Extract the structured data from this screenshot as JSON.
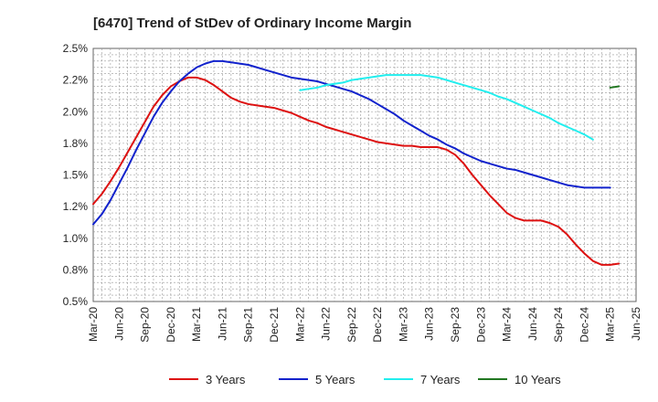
{
  "chart_data": {
    "type": "line",
    "title": "[6470]  Trend of StDev of Ordinary Income Margin",
    "xlabel": "",
    "ylabel": "",
    "ylim": [
      0.5,
      2.5
    ],
    "y_ticks": [
      0.5,
      0.75,
      1.0,
      1.25,
      1.5,
      1.75,
      2.0,
      2.25,
      2.5
    ],
    "y_tick_labels": [
      "0.5%",
      "0.8%",
      "1.0%",
      "1.2%",
      "1.5%",
      "1.8%",
      "2.0%",
      "2.2%",
      "2.5%"
    ],
    "x_tick_labels": [
      "Mar-20",
      "Jun-20",
      "Sep-20",
      "Dec-20",
      "Mar-21",
      "Jun-21",
      "Sep-21",
      "Dec-21",
      "Mar-22",
      "Jun-22",
      "Sep-22",
      "Dec-22",
      "Mar-23",
      "Jun-23",
      "Sep-23",
      "Dec-23",
      "Mar-24",
      "Jun-24",
      "Sep-24",
      "Dec-24",
      "Mar-25",
      "Jun-25"
    ],
    "grid": true,
    "legend_position": "bottom",
    "series": [
      {
        "name": "3 Years",
        "color": "#dd1111",
        "start_month": 0,
        "values": [
          1.27,
          1.35,
          1.45,
          1.56,
          1.68,
          1.8,
          1.92,
          2.04,
          2.13,
          2.2,
          2.24,
          2.27,
          2.27,
          2.25,
          2.21,
          2.16,
          2.11,
          2.08,
          2.06,
          2.05,
          2.04,
          2.03,
          2.01,
          1.99,
          1.96,
          1.93,
          1.91,
          1.88,
          1.86,
          1.84,
          1.82,
          1.8,
          1.78,
          1.76,
          1.75,
          1.74,
          1.73,
          1.73,
          1.72,
          1.72,
          1.72,
          1.7,
          1.66,
          1.59,
          1.5,
          1.42,
          1.34,
          1.27,
          1.2,
          1.16,
          1.14,
          1.14,
          1.14,
          1.12,
          1.09,
          1.03,
          0.95,
          0.88,
          0.82,
          0.79,
          0.79,
          0.8
        ]
      },
      {
        "name": "5 Years",
        "color": "#1122cc",
        "start_month": 0,
        "values": [
          1.11,
          1.19,
          1.3,
          1.43,
          1.56,
          1.7,
          1.83,
          1.96,
          2.07,
          2.16,
          2.24,
          2.3,
          2.35,
          2.38,
          2.4,
          2.4,
          2.39,
          2.38,
          2.37,
          2.35,
          2.33,
          2.31,
          2.29,
          2.27,
          2.26,
          2.25,
          2.24,
          2.22,
          2.2,
          2.18,
          2.16,
          2.13,
          2.1,
          2.06,
          2.02,
          1.98,
          1.93,
          1.89,
          1.85,
          1.81,
          1.78,
          1.74,
          1.71,
          1.67,
          1.64,
          1.61,
          1.59,
          1.57,
          1.55,
          1.54,
          1.52,
          1.5,
          1.48,
          1.46,
          1.44,
          1.42,
          1.41,
          1.4,
          1.4,
          1.4,
          1.4
        ]
      },
      {
        "name": "7 Years",
        "color": "#22eeee",
        "start_month": 24,
        "values": [
          2.17,
          2.18,
          2.19,
          2.21,
          2.22,
          2.23,
          2.25,
          2.26,
          2.27,
          2.28,
          2.29,
          2.29,
          2.29,
          2.29,
          2.29,
          2.28,
          2.27,
          2.25,
          2.23,
          2.21,
          2.19,
          2.17,
          2.15,
          2.12,
          2.1,
          2.07,
          2.04,
          2.01,
          1.98,
          1.95,
          1.91,
          1.88,
          1.85,
          1.82,
          1.78
        ]
      },
      {
        "name": "10 Years",
        "color": "#227722",
        "start_month": 60,
        "values": [
          2.19,
          2.2
        ]
      }
    ]
  }
}
